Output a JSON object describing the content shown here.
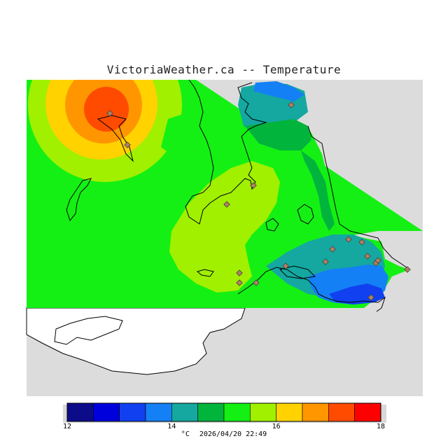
{
  "title": "VictoriaWeather.ca -- Temperature",
  "legend": {
    "colors": [
      "#0c0c8a",
      "#0000dc",
      "#1040f0",
      "#1480f5",
      "#14a8a0",
      "#00b43c",
      "#14f014",
      "#a0f000",
      "#ffd200",
      "#ff9600",
      "#ff4b00",
      "#ff0000"
    ],
    "ticks": [
      "12",
      "14",
      "16",
      "18"
    ],
    "unit": "°C",
    "timestamp": "2026/04/20 22:49"
  },
  "stations": [
    {
      "id": 1
    },
    {
      "id": 2
    },
    {
      "id": 3
    },
    {
      "id": 4
    },
    {
      "id": 5
    },
    {
      "id": 6
    },
    {
      "id": 7
    },
    {
      "id": 8
    },
    {
      "id": 9
    },
    {
      "id": 10
    },
    {
      "id": 11
    },
    {
      "id": 12
    },
    {
      "id": 13
    },
    {
      "id": 14
    },
    {
      "id": 15
    },
    {
      "id": 16
    },
    {
      "id": 17
    },
    {
      "id": 18
    }
  ]
}
